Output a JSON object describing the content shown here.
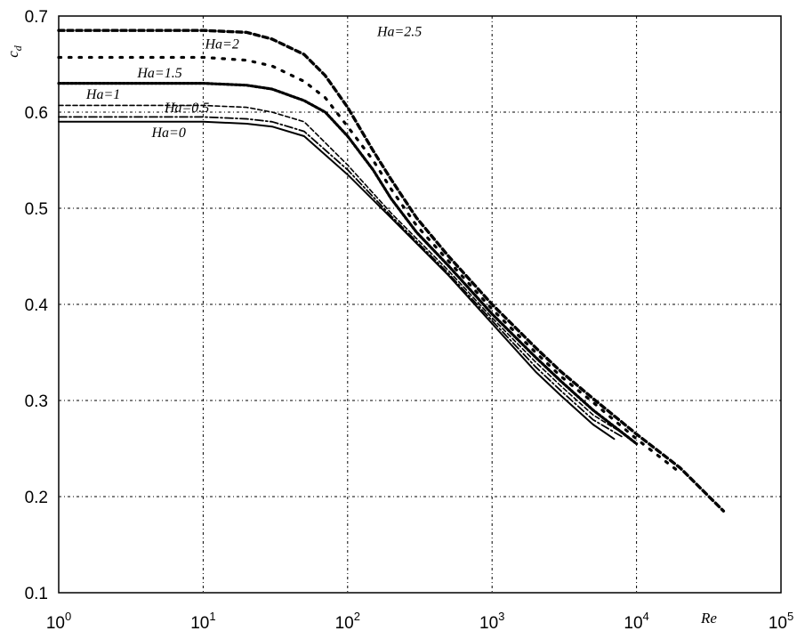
{
  "chart_data": {
    "type": "line",
    "title": "",
    "xlabel": "Re",
    "ylabel": "c_d",
    "ylabel_main": "c",
    "ylabel_sub": "d",
    "x_scale": "log",
    "xlim": [
      1,
      100000
    ],
    "ylim": [
      0.1,
      0.7
    ],
    "grid": true,
    "x_ticks": [
      {
        "base": "10",
        "exp": "0",
        "value": 1
      },
      {
        "base": "10",
        "exp": "1",
        "value": 10
      },
      {
        "base": "10",
        "exp": "2",
        "value": 100
      },
      {
        "base": "10",
        "exp": "3",
        "value": 1000
      },
      {
        "base": "10",
        "exp": "4",
        "value": 10000
      },
      {
        "base": "10",
        "exp": "5",
        "value": 100000
      }
    ],
    "y_ticks": [
      "0.1",
      "0.2",
      "0.3",
      "0.4",
      "0.5",
      "0.6",
      "0.7"
    ],
    "series": [
      {
        "name": "Ha=0",
        "style": "solid",
        "width": 2.0,
        "dash": "",
        "x": [
          1,
          10,
          20,
          30,
          50,
          100,
          200,
          500,
          1000,
          2000,
          3000,
          5000,
          7000
        ],
        "y": [
          0.59,
          0.59,
          0.588,
          0.585,
          0.575,
          0.535,
          0.49,
          0.43,
          0.38,
          0.33,
          0.305,
          0.275,
          0.26
        ]
      },
      {
        "name": "Ha=0.5",
        "style": "dash-dot",
        "width": 1.8,
        "dash": "9 3 2 3",
        "x": [
          1,
          10,
          20,
          30,
          50,
          100,
          200,
          500,
          1000,
          2000,
          3000,
          5000,
          8000
        ],
        "y": [
          0.595,
          0.595,
          0.593,
          0.59,
          0.58,
          0.54,
          0.492,
          0.432,
          0.383,
          0.335,
          0.31,
          0.28,
          0.262
        ]
      },
      {
        "name": "Ha=1",
        "style": "dashed",
        "width": 1.6,
        "dash": "5 3",
        "x": [
          1,
          10,
          20,
          30,
          50,
          100,
          200,
          500,
          1000,
          2000,
          3000,
          5000,
          8000
        ],
        "y": [
          0.607,
          0.607,
          0.605,
          0.6,
          0.59,
          0.545,
          0.495,
          0.435,
          0.386,
          0.34,
          0.315,
          0.285,
          0.266
        ]
      },
      {
        "name": "Ha=1.5",
        "style": "dotted",
        "width": 3.2,
        "dash": "2.5 2",
        "x": [
          1,
          10,
          20,
          30,
          50,
          70,
          100,
          150,
          200,
          300,
          500,
          1000,
          2000,
          3000,
          5000,
          10000
        ],
        "y": [
          0.63,
          0.63,
          0.628,
          0.624,
          0.612,
          0.6,
          0.575,
          0.54,
          0.51,
          0.475,
          0.44,
          0.39,
          0.345,
          0.32,
          0.29,
          0.255
        ]
      },
      {
        "name": "Ha=2",
        "style": "sparse-dotted",
        "width": 3.2,
        "dash": "2.5 9",
        "x": [
          1,
          10,
          20,
          30,
          50,
          70,
          100,
          150,
          200,
          300,
          500,
          1000,
          2000,
          3000,
          5000,
          10000,
          20000
        ],
        "y": [
          0.657,
          0.657,
          0.654,
          0.648,
          0.632,
          0.615,
          0.585,
          0.55,
          0.52,
          0.482,
          0.445,
          0.395,
          0.35,
          0.325,
          0.298,
          0.26,
          0.225
        ]
      },
      {
        "name": "Ha=2.5",
        "style": "dashed-thick",
        "width": 3.4,
        "dash": "6 4",
        "x": [
          1,
          10,
          20,
          30,
          50,
          70,
          100,
          150,
          200,
          300,
          500,
          1000,
          2000,
          3000,
          5000,
          10000,
          20000,
          40000
        ],
        "y": [
          0.685,
          0.685,
          0.683,
          0.676,
          0.66,
          0.638,
          0.605,
          0.56,
          0.53,
          0.49,
          0.45,
          0.4,
          0.355,
          0.33,
          0.302,
          0.265,
          0.23,
          0.185
        ]
      }
    ],
    "annotations": [
      {
        "text": "Ha=2.5",
        "x": 160,
        "y": 0.679
      },
      {
        "text": "Ha=2",
        "x": 10.3,
        "y": 0.666
      },
      {
        "text": "Ha=1.5",
        "x": 3.5,
        "y": 0.636
      },
      {
        "text": "Ha=1",
        "x": 1.55,
        "y": 0.614
      },
      {
        "text": "Ha=0.5",
        "x": 5.4,
        "y": 0.6
      },
      {
        "text": "Ha=0",
        "x": 4.4,
        "y": 0.574
      }
    ]
  }
}
